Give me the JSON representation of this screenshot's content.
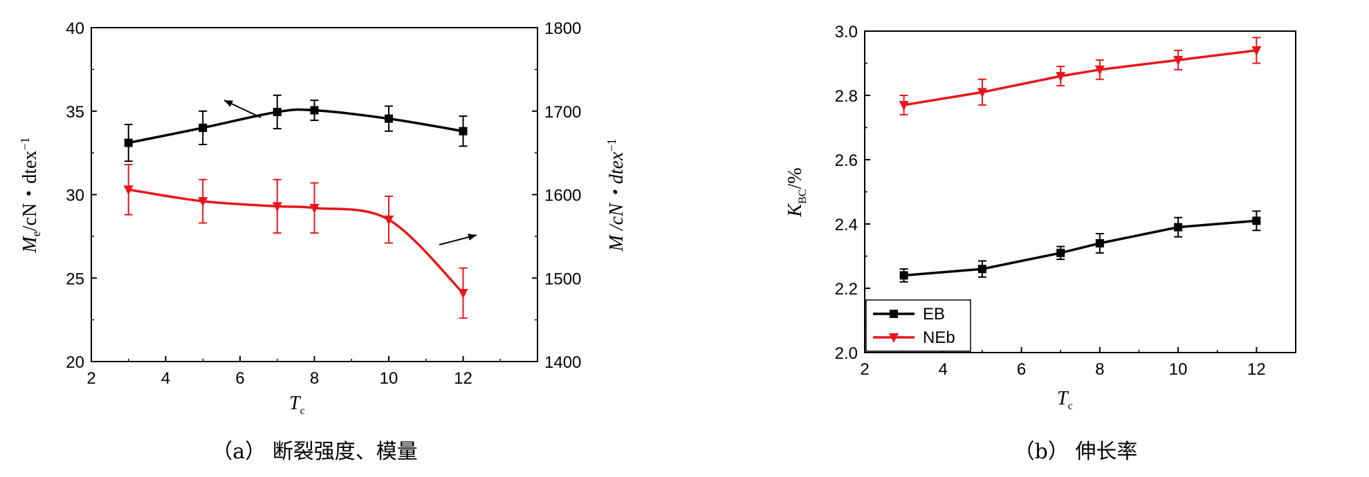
{
  "chart_data": [
    {
      "type": "line",
      "caption": "（a） 断裂强度、模量",
      "xlabel": "T",
      "xlabel_sub": "c",
      "ylabel": "M",
      "ylabel_sub": "e",
      "ylabel_unit": "/cN・dtex",
      "ylabel_sup": "−1",
      "y2label": "M /cN・dtex",
      "y2label_sup": "−1",
      "xlim": [
        2,
        14
      ],
      "ylim": [
        20,
        40
      ],
      "y2lim": [
        1400,
        1800
      ],
      "xticks": [
        "2",
        "4",
        "6",
        "8",
        "10",
        "12"
      ],
      "yticks": [
        "20",
        "25",
        "30",
        "35",
        "40"
      ],
      "y2ticks": [
        "1400",
        "1500",
        "1600",
        "1700",
        "1800"
      ],
      "series": [
        {
          "axis": "y2",
          "color": "#000000",
          "marker": "square",
          "x": [
            3,
            5,
            7,
            8,
            10,
            12
          ],
          "values": [
            1662,
            1680,
            1699,
            1701,
            1691,
            1676
          ],
          "err": [
            22,
            20,
            20,
            12,
            15,
            18
          ],
          "arrow": "left"
        },
        {
          "axis": "y",
          "color": "#e8161b",
          "marker": "triangle-down",
          "x": [
            3,
            5,
            7,
            8,
            10,
            12
          ],
          "values": [
            30.3,
            29.6,
            29.3,
            29.2,
            28.5,
            24.1
          ],
          "err": [
            1.5,
            1.3,
            1.6,
            1.5,
            1.4,
            1.5
          ],
          "arrow": "right"
        }
      ]
    },
    {
      "type": "line",
      "caption": "（b） 伸长率",
      "xlabel": "T",
      "xlabel_sub": "c",
      "ylabel": "K",
      "ylabel_sub": "BC",
      "ylabel_unit": "/%",
      "xlim": [
        2,
        13
      ],
      "ylim": [
        2.0,
        3.0
      ],
      "xticks": [
        "2",
        "4",
        "6",
        "8",
        "10",
        "12"
      ],
      "yticks": [
        "2.0",
        "2.2",
        "2.4",
        "2.6",
        "2.8",
        "3.0"
      ],
      "legend": "bottom-left",
      "series": [
        {
          "name": "EB",
          "color": "#000000",
          "marker": "square",
          "x": [
            3,
            5,
            7,
            8,
            10,
            12
          ],
          "values": [
            2.24,
            2.26,
            2.31,
            2.34,
            2.39,
            2.41
          ],
          "err": [
            0.02,
            0.025,
            0.02,
            0.03,
            0.03,
            0.03
          ]
        },
        {
          "name": "NEb",
          "color": "#e8161b",
          "marker": "triangle-down",
          "x": [
            3,
            5,
            7,
            8,
            10,
            12
          ],
          "values": [
            2.77,
            2.81,
            2.86,
            2.88,
            2.91,
            2.94
          ],
          "err": [
            0.03,
            0.04,
            0.03,
            0.03,
            0.03,
            0.04
          ]
        }
      ]
    }
  ]
}
